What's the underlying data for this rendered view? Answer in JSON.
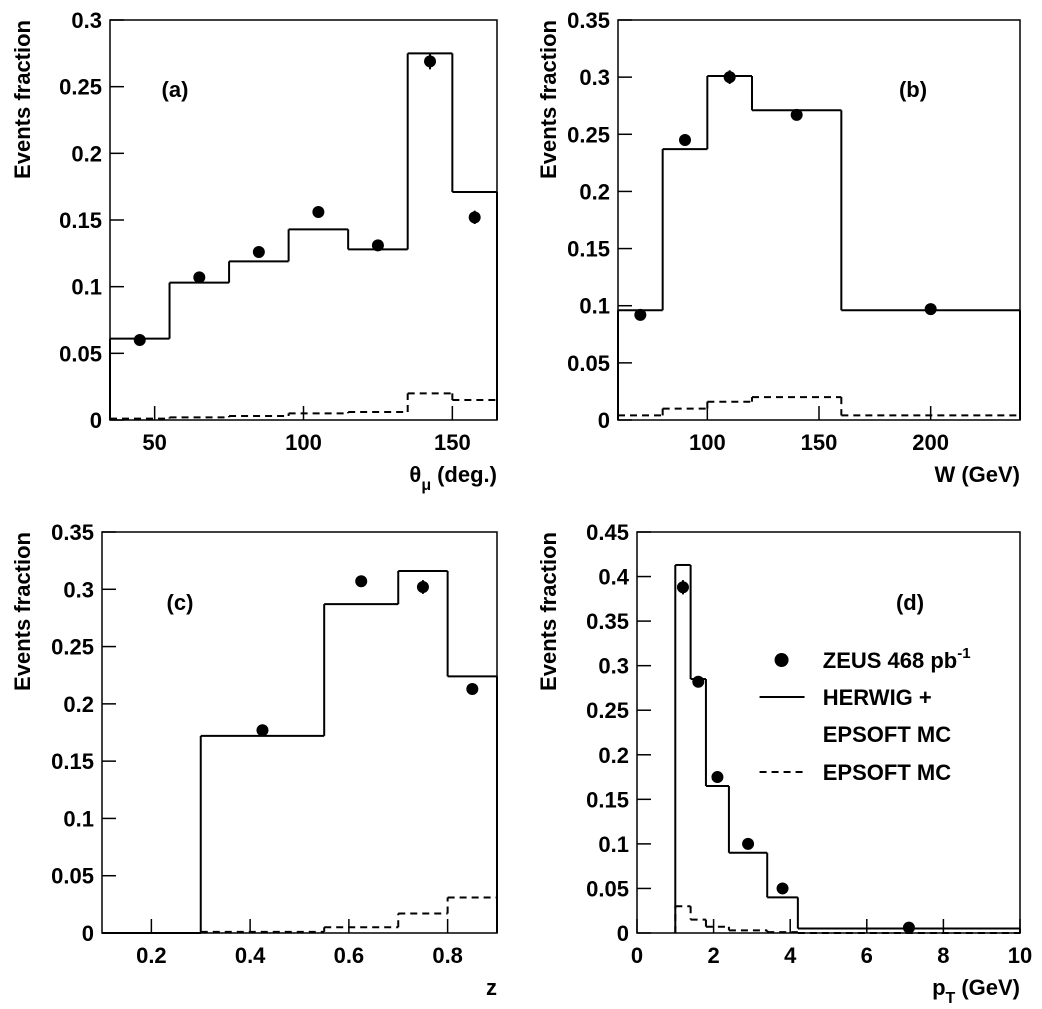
{
  "chart_data": [
    {
      "type": "histogram",
      "label": "(a)",
      "ylabel": "Events fraction",
      "xlabel": {
        "text": "θ",
        "sub": "μ",
        "unit": "(deg.)"
      },
      "xlim": [
        35,
        165
      ],
      "xticks": [
        50,
        100,
        150
      ],
      "ylim": [
        0,
        0.3
      ],
      "yticks": [
        0,
        0.05,
        0.1,
        0.15,
        0.2,
        0.25,
        0.3
      ],
      "bins": [
        35,
        55,
        75,
        95,
        115,
        135,
        150,
        165
      ],
      "mc": {
        "color": "#000000",
        "values": [
          0.061,
          0.103,
          0.119,
          0.143,
          0.128,
          0.275,
          0.171
        ]
      },
      "mc_soft": {
        "color": "#000000",
        "dashed": true,
        "values": [
          0.001,
          0.002,
          0.003,
          0.005,
          0.006,
          0.02,
          0.015
        ]
      },
      "points": {
        "color": "#000000",
        "x": [
          45,
          65,
          85,
          105,
          125,
          142.5,
          157.5
        ],
        "values": [
          0.06,
          0.107,
          0.126,
          0.156,
          0.131,
          0.269,
          0.152
        ],
        "errors": [
          0.003,
          0.003,
          0.003,
          0.003,
          0.003,
          0.006,
          0.005
        ]
      }
    },
    {
      "type": "histogram",
      "label": "(b)",
      "ylabel": "Events fraction",
      "xlabel": {
        "text": "W (GeV)"
      },
      "xlim": [
        60,
        240
      ],
      "xticks": [
        100,
        150,
        200
      ],
      "ylim": [
        0,
        0.35
      ],
      "yticks": [
        0,
        0.05,
        0.1,
        0.15,
        0.2,
        0.25,
        0.3,
        0.35
      ],
      "bins": [
        60,
        80,
        100,
        120,
        160,
        240
      ],
      "mc": {
        "color": "#000000",
        "values": [
          0.096,
          0.237,
          0.301,
          0.271,
          0.096
        ]
      },
      "mc_soft": {
        "color": "#000000",
        "dashed": true,
        "values": [
          0.004,
          0.01,
          0.016,
          0.02,
          0.004
        ]
      },
      "points": {
        "color": "#000000",
        "x": [
          70,
          90,
          110,
          140,
          200
        ],
        "values": [
          0.092,
          0.245,
          0.3,
          0.267,
          0.097
        ],
        "errors": [
          0.003,
          0.005,
          0.006,
          0.004,
          0.003
        ]
      }
    },
    {
      "type": "histogram",
      "label": "(c)",
      "ylabel": "Events fraction",
      "xlabel": {
        "text": "z"
      },
      "xlim": [
        0.1,
        0.9
      ],
      "xticks": [
        0.2,
        0.4,
        0.6,
        0.8
      ],
      "ylim": [
        0,
        0.35
      ],
      "yticks": [
        0,
        0.05,
        0.1,
        0.15,
        0.2,
        0.25,
        0.3,
        0.35
      ],
      "bins": [
        0.1,
        0.3,
        0.55,
        0.7,
        0.8,
        0.9
      ],
      "mc": {
        "color": "#000000",
        "values": [
          0,
          0.172,
          0.287,
          0.316,
          0.224
        ]
      },
      "mc_soft": {
        "color": "#000000",
        "dashed": true,
        "values": [
          0,
          0.001,
          0.005,
          0.017,
          0.031
        ]
      },
      "points": {
        "color": "#000000",
        "x": [
          0.425,
          0.625,
          0.75,
          0.85
        ],
        "values": [
          0.177,
          0.307,
          0.302,
          0.213
        ],
        "errors": [
          0.003,
          0.005,
          0.006,
          0.004
        ]
      }
    },
    {
      "type": "histogram",
      "label": "(d)",
      "ylabel": "Events fraction",
      "xlabel": {
        "text": "p",
        "sub": "T",
        "unit": "(GeV)"
      },
      "xlim": [
        0,
        10
      ],
      "xticks": [
        0,
        2,
        4,
        6,
        8,
        10
      ],
      "ylim": [
        0,
        0.45
      ],
      "yticks": [
        0,
        0.05,
        0.1,
        0.15,
        0.2,
        0.25,
        0.3,
        0.35,
        0.4,
        0.45
      ],
      "bins": [
        1,
        1.4,
        1.8,
        2.4,
        3.4,
        4.2,
        10
      ],
      "legend": "upper right",
      "mc": {
        "name": [
          "HERWIG +",
          "EPSOFT MC"
        ],
        "color": "#000000",
        "values": [
          0.413,
          0.285,
          0.165,
          0.09,
          0.04,
          0.005
        ]
      },
      "mc_soft": {
        "name": "EPSOFT MC",
        "color": "#000000",
        "dashed": true,
        "values": [
          0.03,
          0.015,
          0.007,
          0.003,
          0.001,
          0
        ]
      },
      "points": {
        "name": "ZEUS 468 pb",
        "name_sup": "-1",
        "color": "#000000",
        "x": [
          1.2,
          1.6,
          2.1,
          2.9,
          3.8,
          7.1
        ],
        "values": [
          0.388,
          0.282,
          0.175,
          0.1,
          0.05,
          0.006
        ],
        "errors": [
          0.008,
          0.005,
          0.004,
          0.003,
          0.003,
          0.002
        ]
      }
    }
  ]
}
